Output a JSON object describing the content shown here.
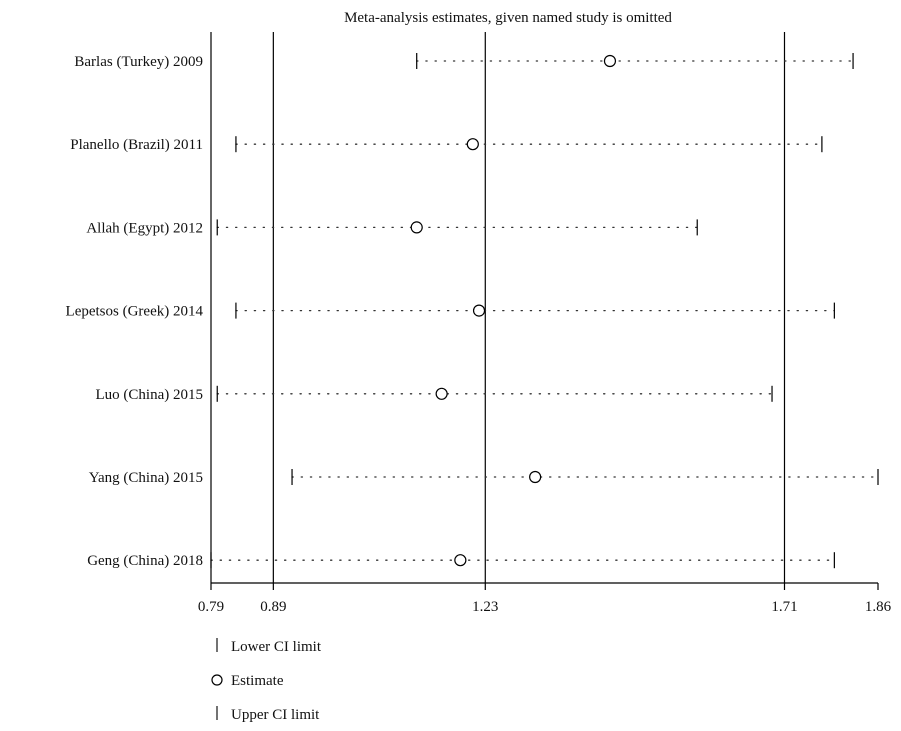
{
  "chart_data": {
    "type": "scatter",
    "title": "Meta-analysis estimates, given named study is omitted",
    "xlabel": "",
    "ylabel": "",
    "xlim": [
      0.79,
      1.86
    ],
    "x_ticks": [
      0.79,
      0.89,
      1.23,
      1.71,
      1.86
    ],
    "x_tick_labels": [
      "0.79",
      "0.89",
      "1.23",
      "1.71",
      "1.86"
    ],
    "reference_lines": [
      0.89,
      1.23,
      1.71
    ],
    "studies": [
      {
        "label": "Barlas (Turkey) 2009",
        "lower": 1.12,
        "estimate": 1.43,
        "upper": 1.82
      },
      {
        "label": "Planello (Brazil) 2011",
        "lower": 0.83,
        "estimate": 1.21,
        "upper": 1.77
      },
      {
        "label": "Allah (Egypt) 2012",
        "lower": 0.8,
        "estimate": 1.12,
        "upper": 1.57
      },
      {
        "label": "Lepetsos (Greek) 2014",
        "lower": 0.83,
        "estimate": 1.22,
        "upper": 1.79
      },
      {
        "label": "Luo (China) 2015",
        "lower": 0.8,
        "estimate": 1.16,
        "upper": 1.69
      },
      {
        "label": "Yang (China) 2015",
        "lower": 0.92,
        "estimate": 1.31,
        "upper": 1.86
      },
      {
        "label": "Geng (China) 2018",
        "lower": 0.79,
        "estimate": 1.19,
        "upper": 1.79
      }
    ],
    "legend": {
      "position": "bottom-left",
      "entries": [
        {
          "symbol": "|",
          "label": "Lower CI limit"
        },
        {
          "symbol": "○",
          "label": "Estimate"
        },
        {
          "symbol": "|",
          "label": "Upper CI limit"
        }
      ]
    },
    "grid": false
  }
}
